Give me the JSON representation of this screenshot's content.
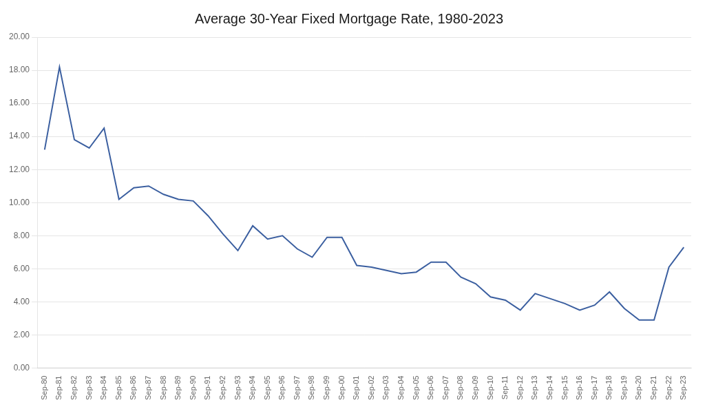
{
  "chart_data": {
    "type": "line",
    "title": "Average 30-Year Fixed Mortgage Rate, 1980-2023",
    "categories": [
      "Sep-80",
      "Sep-81",
      "Sep-82",
      "Sep-83",
      "Sep-84",
      "Sep-85",
      "Sep-86",
      "Sep-87",
      "Sep-88",
      "Sep-89",
      "Sep-90",
      "Sep-91",
      "Sep-92",
      "Sep-93",
      "Sep-94",
      "Sep-95",
      "Sep-96",
      "Sep-97",
      "Sep-98",
      "Sep-99",
      "Sep-00",
      "Sep-01",
      "Sep-02",
      "Sep-03",
      "Sep-04",
      "Sep-05",
      "Sep-06",
      "Sep-07",
      "Sep-08",
      "Sep-09",
      "Sep-10",
      "Sep-11",
      "Sep-12",
      "Sep-13",
      "Sep-14",
      "Sep-15",
      "Sep-16",
      "Sep-17",
      "Sep-18",
      "Sep-19",
      "Sep-20",
      "Sep-21",
      "Sep-22",
      "Sep-23"
    ],
    "values": [
      13.2,
      18.2,
      13.8,
      13.3,
      14.5,
      10.2,
      10.9,
      11.0,
      10.5,
      10.2,
      10.1,
      9.2,
      8.1,
      7.1,
      8.6,
      7.8,
      8.0,
      7.2,
      6.7,
      7.9,
      7.9,
      6.2,
      6.1,
      5.9,
      5.7,
      5.8,
      6.4,
      6.4,
      5.5,
      5.1,
      4.3,
      4.1,
      3.5,
      4.5,
      4.2,
      3.9,
      3.5,
      3.8,
      4.6,
      3.6,
      2.9,
      2.9,
      6.1,
      7.3
    ],
    "color": "#3B5FA0",
    "ylim": [
      0,
      20.0
    ],
    "yticks": [
      {
        "value": 0,
        "label": "0.00"
      },
      {
        "value": 2,
        "label": "2.00"
      },
      {
        "value": 4,
        "label": "4.00"
      },
      {
        "value": 6,
        "label": "6.00"
      },
      {
        "value": 8,
        "label": "8.00"
      },
      {
        "value": 10,
        "label": "10.00"
      },
      {
        "value": 12,
        "label": "12.00"
      },
      {
        "value": 14,
        "label": "14.00"
      },
      {
        "value": 16,
        "label": "16.00"
      },
      {
        "value": 18,
        "label": "18.00"
      },
      {
        "value": 20,
        "label": "20.00"
      }
    ],
    "grid": true
  }
}
